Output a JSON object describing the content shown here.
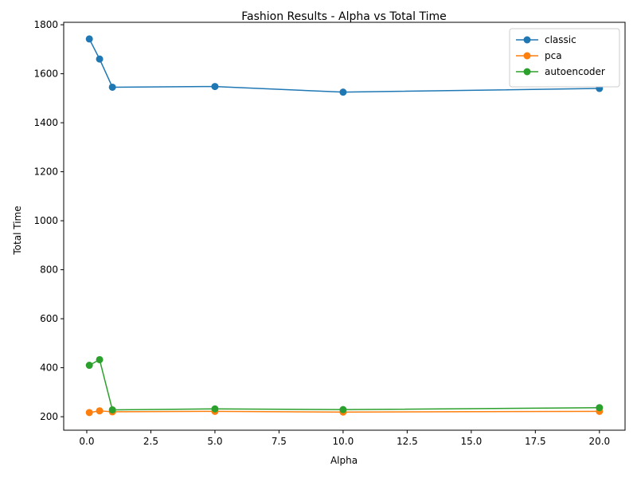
{
  "chart_data": {
    "type": "line",
    "title": "Fashion Results - Alpha vs Total Time",
    "xlabel": "Alpha",
    "ylabel": "Total Time",
    "xlim": [
      -0.9,
      21.0
    ],
    "ylim": [
      145,
      1810
    ],
    "x_ticks": [
      0.0,
      2.5,
      5.0,
      7.5,
      10.0,
      12.5,
      15.0,
      17.5,
      20.0
    ],
    "x_tick_labels": [
      "0.0",
      "2.5",
      "5.0",
      "7.5",
      "10.0",
      "12.5",
      "15.0",
      "17.5",
      "20.0"
    ],
    "y_ticks": [
      200,
      400,
      600,
      800,
      1000,
      1200,
      1400,
      1600,
      1800
    ],
    "y_tick_labels": [
      "200",
      "400",
      "600",
      "800",
      "1000",
      "1200",
      "1400",
      "1600",
      "1800"
    ],
    "grid": false,
    "legend_position": "top-right",
    "x": [
      0.1,
      0.5,
      1.0,
      5.0,
      10.0,
      20.0
    ],
    "series": [
      {
        "name": "classic",
        "color": "#1f77b4",
        "values": [
          1742,
          1660,
          1545,
          1548,
          1525,
          1540
        ]
      },
      {
        "name": "pca",
        "color": "#ff7f0e",
        "values": [
          217,
          224,
          220,
          222,
          219,
          222
        ]
      },
      {
        "name": "autoencoder",
        "color": "#2ca02c",
        "values": [
          410,
          433,
          228,
          232,
          229,
          237
        ]
      }
    ]
  }
}
